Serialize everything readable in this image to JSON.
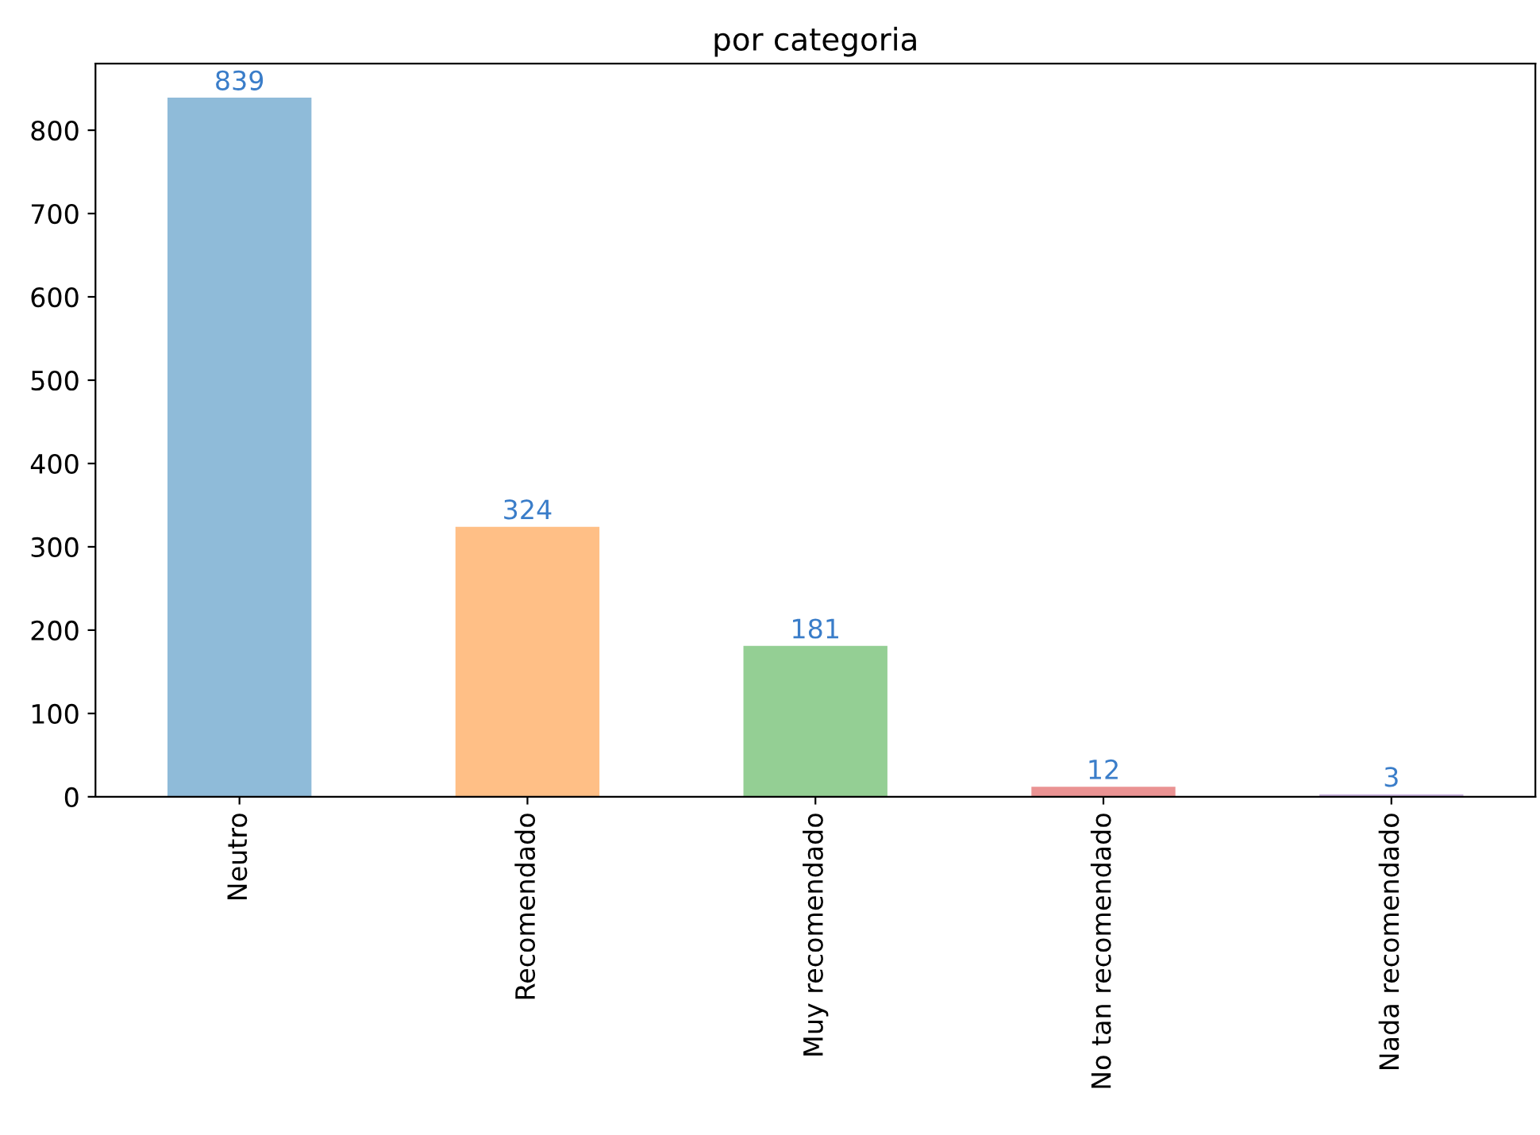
{
  "chart_data": {
    "type": "bar",
    "title": "por categoria",
    "categories": [
      "Neutro",
      "Recomendado",
      "Muy recomendado",
      "No tan recomendado",
      "Nada recomendado"
    ],
    "values": [
      839,
      324,
      181,
      12,
      3
    ],
    "colors": [
      "#8fbbd9",
      "#ffbf86",
      "#94cf94",
      "#ea9393",
      "#c9b3de"
    ],
    "ylim": [
      0,
      880
    ],
    "yticks": [
      0,
      100,
      200,
      300,
      400,
      500,
      600,
      700,
      800
    ],
    "data_labels": true,
    "grid": false,
    "legend": false
  }
}
